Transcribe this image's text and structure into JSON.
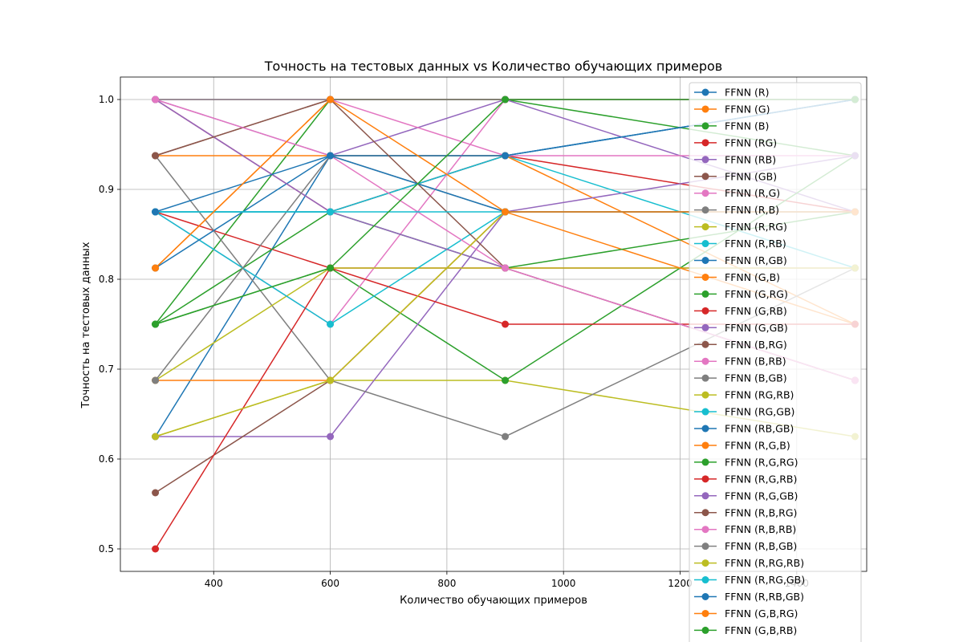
{
  "chart_data": {
    "type": "line",
    "title": "Точность на тестовых данных vs Количество обучающих примеров",
    "xlabel": "Количество обучающих примеров",
    "ylabel": "Точность на тестовых данных",
    "xlim": [
      240,
      1520
    ],
    "ylim": [
      0.475,
      1.025
    ],
    "x_ticks": [
      400,
      600,
      800,
      1000,
      1200,
      1400
    ],
    "y_ticks": [
      0.5,
      0.6,
      0.7,
      0.8,
      0.9,
      1.0
    ],
    "grid": true,
    "legend_position": "upper right",
    "x": [
      300,
      600,
      900,
      1500
    ],
    "series": [
      {
        "name": "FFNN (R)",
        "color": "#1f77b4",
        "values": [
          0.875,
          0.875,
          0.9375,
          1.0
        ]
      },
      {
        "name": "FFNN (G)",
        "color": "#ff7f0e",
        "values": [
          0.8125,
          1.0,
          1.0,
          1.0
        ]
      },
      {
        "name": "FFNN (B)",
        "color": "#2ca02c",
        "values": [
          0.75,
          1.0,
          1.0,
          0.9375
        ]
      },
      {
        "name": "FFNN (RG)",
        "color": "#d62728",
        "values": [
          1.0,
          0.875,
          0.9375,
          0.875
        ]
      },
      {
        "name": "FFNN (RB)",
        "color": "#9467bd",
        "values": [
          1.0,
          0.9375,
          1.0,
          0.875
        ]
      },
      {
        "name": "FFNN (GB)",
        "color": "#8c564b",
        "values": [
          0.9375,
          1.0,
          1.0,
          1.0
        ]
      },
      {
        "name": "FFNN (R,G)",
        "color": "#e377c2",
        "values": [
          1.0,
          1.0,
          0.9375,
          0.9375
        ]
      },
      {
        "name": "FFNN (R,B)",
        "color": "#7f7f7f",
        "values": [
          1.0,
          1.0,
          1.0,
          1.0
        ]
      },
      {
        "name": "FFNN (R,RG)",
        "color": "#bcbd22",
        "values": [
          0.625,
          0.6875,
          0.6875,
          0.625
        ]
      },
      {
        "name": "FFNN (R,RB)",
        "color": "#17becf",
        "values": [
          0.875,
          0.875,
          0.9375,
          0.8125
        ]
      },
      {
        "name": "FFNN (R,GB)",
        "color": "#1f77b4",
        "values": [
          0.625,
          0.9375,
          0.9375,
          1.0
        ]
      },
      {
        "name": "FFNN (G,B)",
        "color": "#ff7f0e",
        "values": [
          0.9375,
          0.9375,
          0.9375,
          0.75
        ]
      },
      {
        "name": "FFNN (G,RG)",
        "color": "#2ca02c",
        "values": [
          0.75,
          0.8125,
          0.6875,
          0.9375
        ]
      },
      {
        "name": "FFNN (G,RB)",
        "color": "#d62728",
        "values": [
          0.875,
          0.8125,
          0.8125,
          0.8125
        ]
      },
      {
        "name": "FFNN (G,GB)",
        "color": "#9467bd",
        "values": [
          0.625,
          0.625,
          0.875,
          0.9375
        ]
      },
      {
        "name": "FFNN (B,RG)",
        "color": "#8c564b",
        "values": [
          0.5625,
          0.6875,
          0.875,
          0.875
        ]
      },
      {
        "name": "FFNN (B,RB)",
        "color": "#e377c2",
        "values": [
          0.875,
          0.75,
          1.0,
          1.0
        ]
      },
      {
        "name": "FFNN (B,GB)",
        "color": "#7f7f7f",
        "values": [
          0.9375,
          0.6875,
          0.625,
          0.8125
        ]
      },
      {
        "name": "FFNN (RG,RB)",
        "color": "#bcbd22",
        "values": [
          0.6875,
          0.8125,
          0.8125,
          0.8125
        ]
      },
      {
        "name": "FFNN (RG,GB)",
        "color": "#17becf",
        "values": [
          0.875,
          0.75,
          0.875,
          0.875
        ]
      },
      {
        "name": "FFNN (RB,GB)",
        "color": "#1f77b4",
        "values": [
          0.8125,
          0.9375,
          0.9375,
          1.0
        ]
      },
      {
        "name": "FFNN (R,G,B)",
        "color": "#ff7f0e",
        "values": [
          0.6875,
          0.6875,
          0.875,
          0.75
        ]
      },
      {
        "name": "FFNN (R,G,RG)",
        "color": "#2ca02c",
        "values": [
          0.75,
          0.875,
          0.8125,
          0.875
        ]
      },
      {
        "name": "FFNN (R,G,RB)",
        "color": "#d62728",
        "values": [
          0.5,
          0.8125,
          0.75,
          0.75
        ]
      },
      {
        "name": "FFNN (R,G,GB)",
        "color": "#9467bd",
        "values": [
          1.0,
          0.875,
          0.8125,
          0.6875
        ]
      },
      {
        "name": "FFNN (R,B,RG)",
        "color": "#8c564b",
        "values": [
          0.9375,
          1.0,
          0.8125,
          0.6875
        ]
      },
      {
        "name": "FFNN (R,B,RB)",
        "color": "#e377c2",
        "values": [
          1.0,
          0.9375,
          0.8125,
          0.6875
        ]
      },
      {
        "name": "FFNN (R,B,GB)",
        "color": "#7f7f7f",
        "values": [
          0.6875,
          0.9375,
          0.875,
          0.875
        ]
      },
      {
        "name": "FFNN (R,RG,RB)",
        "color": "#bcbd22",
        "values": [
          0.625,
          0.6875,
          0.875,
          0.875
        ]
      },
      {
        "name": "FFNN (R,RG,GB)",
        "color": "#17becf",
        "values": [
          0.875,
          0.875,
          0.875,
          0.875
        ]
      },
      {
        "name": "FFNN (R,RB,GB)",
        "color": "#1f77b4",
        "values": [
          0.875,
          0.9375,
          0.875,
          0.875
        ]
      },
      {
        "name": "FFNN (G,B,RG)",
        "color": "#ff7f0e",
        "values": [
          0.8125,
          1.0,
          0.875,
          0.875
        ]
      },
      {
        "name": "FFNN (G,B,RB)",
        "color": "#2ca02c",
        "values": [
          0.75,
          0.8125,
          1.0,
          1.0
        ]
      }
    ]
  }
}
